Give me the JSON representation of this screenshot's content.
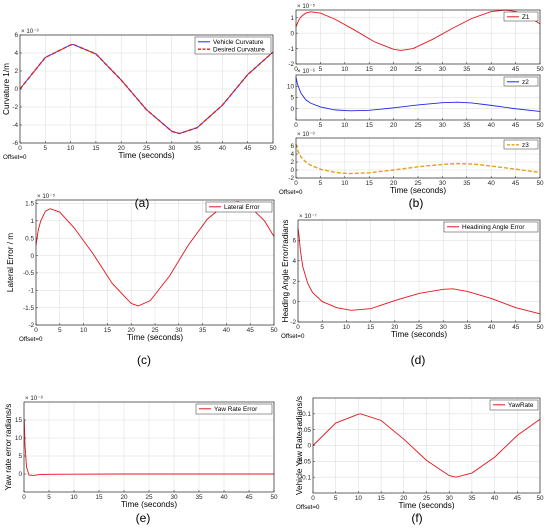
{
  "panel_labels": [
    "(a)",
    "(b)",
    "(c)",
    "(d)",
    "(e)",
    "(f)"
  ],
  "offset_label": "Offset=0",
  "colors": {
    "red": "#e8141c",
    "blue": "#1f2be8",
    "orange": "#e3a11e",
    "dash_red": "#e01e1e",
    "grid": "#d9d9d9",
    "axis": "#262626"
  },
  "chart_data": [
    {
      "id": "a",
      "type": "line",
      "xlabel": "Time (seconds)",
      "ylabel": "Curvature 1/m",
      "xlim": [
        0,
        50
      ],
      "ylim": [
        -6,
        6
      ],
      "y_multiplier": "× 10⁻³",
      "xticks": [
        0,
        5,
        10,
        15,
        20,
        25,
        30,
        35,
        40,
        45,
        50
      ],
      "yticks": [
        -6,
        -4,
        -2,
        0,
        2,
        4,
        6
      ],
      "grid": true,
      "legend": "top-right",
      "series": [
        {
          "name": "Vehicle Curvature",
          "color": "blue",
          "style": "solid",
          "x": [
            0,
            5,
            10,
            10.5,
            15,
            20,
            25,
            30,
            31.5,
            35,
            40,
            45,
            50
          ],
          "y": [
            0,
            3.5,
            4.9,
            4.95,
            3.9,
            1.0,
            -2.3,
            -4.7,
            -4.95,
            -4.3,
            -1.8,
            1.6,
            4.1
          ]
        },
        {
          "name": "Desired Curvature",
          "color": "dash_red",
          "style": "dashed",
          "x": [
            0,
            5,
            10,
            10.5,
            15,
            20,
            25,
            30,
            31.5,
            35,
            40,
            45,
            50
          ],
          "y": [
            0,
            3.5,
            4.9,
            4.95,
            3.9,
            1.0,
            -2.3,
            -4.7,
            -4.95,
            -4.3,
            -1.8,
            1.6,
            4.1
          ]
        }
      ]
    },
    {
      "id": "b1",
      "type": "line",
      "xlim": [
        0,
        50
      ],
      "ylim": [
        -2,
        1.5
      ],
      "y_multiplier": "× 10⁻⁵",
      "xticks": [
        0,
        5,
        10,
        15,
        20,
        25,
        30,
        35,
        40,
        45,
        50
      ],
      "yticks": [
        -2,
        -1,
        0,
        1
      ],
      "grid": true,
      "legend": "top-right",
      "series": [
        {
          "name": "Z1",
          "color": "red",
          "style": "solid",
          "x": [
            0,
            0.5,
            1,
            2,
            3,
            5,
            8,
            12,
            16,
            20,
            21.5,
            24,
            28,
            32,
            36,
            40,
            43,
            45,
            48,
            50
          ],
          "y": [
            0.4,
            0.8,
            1.05,
            1.3,
            1.38,
            1.3,
            0.9,
            0.2,
            -0.55,
            -1.05,
            -1.12,
            -1.0,
            -0.4,
            0.3,
            0.95,
            1.4,
            1.5,
            1.4,
            1.0,
            0.6
          ]
        }
      ]
    },
    {
      "id": "b2",
      "type": "line",
      "xlim": [
        0,
        50
      ],
      "ylim": [
        -5,
        15
      ],
      "y_multiplier": "× 10⁻⁶",
      "xticks": [
        0,
        5,
        10,
        15,
        20,
        25,
        30,
        35,
        40,
        45,
        50
      ],
      "yticks": [
        0,
        5,
        10
      ],
      "grid": true,
      "legend": "top-right",
      "series": [
        {
          "name": "z2",
          "color": "blue",
          "style": "solid",
          "x": [
            0,
            0.3,
            1,
            2,
            3,
            5,
            8,
            11,
            15,
            20,
            25,
            30,
            33,
            36,
            40,
            45,
            50
          ],
          "y": [
            14,
            11,
            7,
            4,
            2.5,
            0.8,
            -0.5,
            -0.9,
            -0.7,
            0.4,
            1.7,
            2.7,
            2.9,
            2.6,
            1.5,
            0,
            -1.2
          ]
        }
      ]
    },
    {
      "id": "b3",
      "type": "line",
      "xlabel": "Time (seconds)",
      "xlim": [
        0,
        50
      ],
      "ylim": [
        -2,
        8
      ],
      "y_multiplier": "× 10⁻³",
      "xticks": [
        0,
        5,
        10,
        15,
        20,
        25,
        30,
        35,
        40,
        45,
        50
      ],
      "yticks": [
        -2,
        0,
        2,
        4,
        6
      ],
      "grid": true,
      "legend": "top-right",
      "series": [
        {
          "name": "z3",
          "color": "orange",
          "style": "dashed",
          "x": [
            0,
            0.3,
            1,
            2,
            3,
            5,
            8,
            11,
            15,
            20,
            25,
            30,
            33,
            36,
            40,
            45,
            50
          ],
          "y": [
            6.5,
            5,
            3.3,
            2,
            1.2,
            0.2,
            -0.6,
            -0.9,
            -0.7,
            0,
            0.8,
            1.4,
            1.6,
            1.5,
            1.0,
            0.2,
            -0.6
          ]
        }
      ]
    },
    {
      "id": "c",
      "type": "line",
      "xlabel": "Time (seconds)",
      "ylabel": "Lateral Error / m",
      "xlim": [
        0,
        50
      ],
      "ylim": [
        -2,
        1.6
      ],
      "y_multiplier": "× 10⁻⁵",
      "xticks": [
        0,
        5,
        10,
        15,
        20,
        25,
        30,
        35,
        40,
        45,
        50
      ],
      "yticks": [
        -2,
        -1.5,
        -1,
        -0.5,
        0,
        0.5,
        1,
        1.5
      ],
      "grid": true,
      "legend": "top-right",
      "series": [
        {
          "name": "Lateral Error",
          "color": "red",
          "style": "solid",
          "x": [
            0,
            0.5,
            1,
            2,
            3,
            5,
            8,
            12,
            16,
            20,
            21.5,
            24,
            28,
            32,
            36,
            40,
            42.5,
            45,
            48,
            50
          ],
          "y": [
            0.3,
            0.75,
            1.0,
            1.28,
            1.35,
            1.25,
            0.8,
            0.05,
            -0.8,
            -1.38,
            -1.45,
            -1.3,
            -0.6,
            0.3,
            1.05,
            1.5,
            1.55,
            1.4,
            1.0,
            0.55
          ]
        }
      ]
    },
    {
      "id": "d",
      "type": "line",
      "xlabel": "Time (seconds)",
      "ylabel": "Heading Angle Error/radians",
      "xlim": [
        0,
        50
      ],
      "ylim": [
        -2,
        8
      ],
      "y_multiplier": "× 10⁻⁷",
      "xticks": [
        0,
        5,
        10,
        15,
        20,
        25,
        30,
        35,
        40,
        45,
        50
      ],
      "yticks": [
        -2,
        0,
        2,
        4,
        6
      ],
      "grid": true,
      "legend": "top-right",
      "series": [
        {
          "name": "Headining Angle Error",
          "color": "red",
          "style": "solid",
          "x": [
            0,
            0.2,
            0.5,
            1,
            2,
            3,
            5,
            8,
            11,
            15,
            20,
            25,
            30,
            32,
            35,
            40,
            45,
            50
          ],
          "y": [
            7.2,
            6.5,
            5,
            3.4,
            1.8,
            0.9,
            0,
            -0.6,
            -0.85,
            -0.7,
            0.1,
            0.8,
            1.2,
            1.25,
            1.0,
            0.3,
            -0.6,
            -1.2
          ]
        }
      ]
    },
    {
      "id": "e",
      "type": "line",
      "xlabel": "Time (seconds)",
      "ylabel": "Yaw rate error radians/s",
      "xlim": [
        0,
        50
      ],
      "ylim": [
        -5,
        20
      ],
      "y_multiplier": "× 10⁻⁶",
      "xticks": [
        0,
        5,
        10,
        15,
        20,
        25,
        30,
        35,
        40,
        45,
        50
      ],
      "yticks": [
        0,
        5,
        10,
        15
      ],
      "grid": true,
      "legend": "top-right",
      "series": [
        {
          "name": "Yaw Rate Error",
          "color": "red",
          "style": "solid",
          "x": [
            0,
            0.05,
            0.2,
            0.5,
            1,
            2,
            3,
            5,
            10,
            20,
            30,
            40,
            50
          ],
          "y": [
            15,
            15,
            8,
            2,
            -0.3,
            -0.4,
            -0.2,
            -0.1,
            -0.05,
            0,
            0,
            0,
            0
          ]
        }
      ]
    },
    {
      "id": "f",
      "type": "line",
      "xlabel": "Time (seconds)",
      "ylabel": "Vehicle Yaw Rate radians/s",
      "xlim": [
        0,
        50
      ],
      "ylim": [
        -0.15,
        0.15
      ],
      "xticks": [
        0,
        5,
        10,
        15,
        20,
        25,
        30,
        35,
        40,
        45,
        50
      ],
      "yticks": [
        -0.1,
        -0.05,
        0,
        0.05,
        0.1
      ],
      "grid": true,
      "legend": "top-right",
      "series": [
        {
          "name": "YawRate",
          "color": "red",
          "style": "solid",
          "x": [
            0,
            5,
            10,
            10.5,
            15,
            20,
            25,
            30,
            31.5,
            35,
            40,
            45,
            50
          ],
          "y": [
            0,
            0.071,
            0.099,
            0.1,
            0.079,
            0.02,
            -0.047,
            -0.095,
            -0.1,
            -0.087,
            -0.037,
            0.032,
            0.083
          ]
        }
      ]
    }
  ]
}
